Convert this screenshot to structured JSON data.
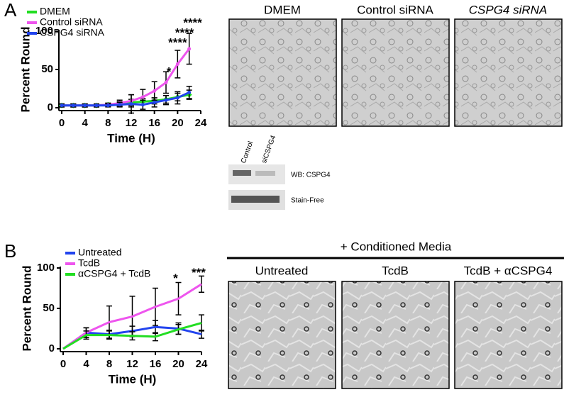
{
  "figure": {
    "panel_a": "A",
    "panel_b": "B",
    "images_a": [
      "DMEM",
      "Control siRNA",
      "CSPG4 siRNA"
    ],
    "blot": {
      "lanes": [
        "Control",
        "siCSPG4"
      ],
      "rows": [
        "WB: CSPG4",
        "Stain-Free"
      ]
    },
    "media_title": "+ Conditioned Media",
    "images_b": [
      "Untreated",
      "TcdB",
      "TcdB + αCSPG4"
    ]
  },
  "chart_data": [
    {
      "type": "line",
      "x_label": "Time (H)",
      "y_label": "Percent Round",
      "x": [
        0,
        2,
        4,
        6,
        8,
        10,
        12,
        14,
        16,
        18,
        20,
        22
      ],
      "xlim": [
        0,
        24
      ],
      "xticks": [
        0,
        4,
        8,
        12,
        16,
        20,
        24
      ],
      "ylim": [
        0,
        100
      ],
      "yticks": [
        0,
        50,
        100
      ],
      "series": [
        {
          "name": "DMEM",
          "color": "#22dd22",
          "marker": "diamond",
          "values": [
            3,
            3,
            3,
            3,
            4,
            5,
            7,
            8,
            9,
            11,
            14,
            17
          ],
          "errors": [
            2,
            2,
            2,
            2,
            2,
            3,
            4,
            4,
            4,
            5,
            5,
            6
          ]
        },
        {
          "name": "Control siRNA",
          "color": "#ee55ee",
          "marker": "star",
          "values": [
            3,
            3,
            3,
            3,
            4,
            6,
            9,
            14,
            22,
            33,
            57,
            77
          ],
          "errors": [
            2,
            2,
            2,
            2,
            2,
            4,
            8,
            10,
            12,
            14,
            18,
            20
          ]
        },
        {
          "name": "CSPG4 siRNA",
          "color": "#2244ee",
          "marker": "star",
          "values": [
            3,
            3,
            3,
            3,
            3,
            4,
            5,
            4,
            7,
            10,
            13,
            20
          ],
          "errors": [
            2,
            2,
            2,
            2,
            2,
            3,
            12,
            6,
            6,
            6,
            8,
            8
          ]
        }
      ],
      "annotations": [
        {
          "text": "*",
          "x": 18.5,
          "y": 50
        },
        {
          "text": "****",
          "x": 20,
          "y": 88
        },
        {
          "text": "****",
          "x": 21.2,
          "y": 101
        },
        {
          "text": "****",
          "x": 22.6,
          "y": 114
        }
      ]
    },
    {
      "type": "line",
      "x_label": "Time (H)",
      "y_label": "Percent Round",
      "x": [
        0,
        4,
        8,
        12,
        16,
        20,
        24
      ],
      "xlim": [
        0,
        24
      ],
      "xticks": [
        0,
        4,
        8,
        12,
        16,
        20,
        24
      ],
      "ylim": [
        0,
        100
      ],
      "yticks": [
        0,
        50,
        100
      ],
      "series": [
        {
          "name": "Untreated",
          "color": "#2244ee",
          "marker": "none",
          "values": [
            0,
            20,
            18,
            22,
            27,
            25,
            18
          ],
          "errors": [
            0,
            6,
            5,
            6,
            8,
            7,
            5
          ]
        },
        {
          "name": "TcdB",
          "color": "#ee55ee",
          "marker": "none",
          "values": [
            0,
            20,
            33,
            40,
            52,
            62,
            80
          ],
          "errors": [
            0,
            6,
            20,
            25,
            23,
            20,
            10
          ]
        },
        {
          "name": "αCSPG4 + TcdB",
          "color": "#22dd22",
          "marker": "none",
          "values": [
            0,
            17,
            17,
            16,
            15,
            24,
            32
          ],
          "errors": [
            0,
            5,
            5,
            5,
            5,
            6,
            10
          ]
        }
      ],
      "annotations": [
        {
          "text": "*",
          "x": 19.5,
          "y": 90
        },
        {
          "text": "***",
          "x": 23.5,
          "y": 97
        }
      ]
    }
  ]
}
